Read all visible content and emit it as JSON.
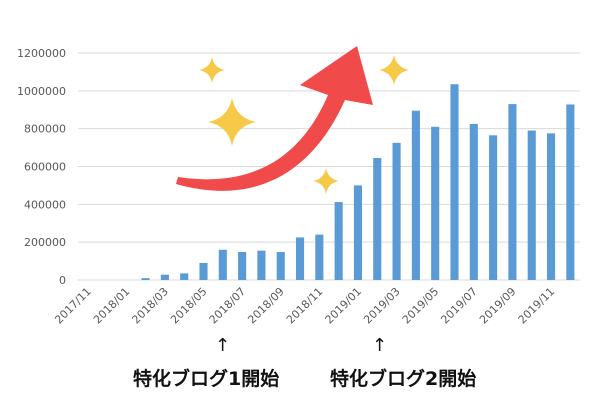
{
  "chart_data": {
    "type": "bar",
    "categories": [
      "2017/11",
      "2017/12",
      "2018/01",
      "2018/02",
      "2018/03",
      "2018/04",
      "2018/05",
      "2018/06",
      "2018/07",
      "2018/08",
      "2018/09",
      "2018/10",
      "2018/11",
      "2018/12",
      "2019/01",
      "2019/02",
      "2019/03",
      "2019/04",
      "2019/05",
      "2019/06",
      "2019/07",
      "2019/08",
      "2019/09",
      "2019/10",
      "2019/11",
      "2019/12"
    ],
    "values": [
      0,
      0,
      0,
      10000,
      28000,
      35000,
      90000,
      160000,
      148000,
      155000,
      148000,
      225000,
      240000,
      412000,
      500000,
      645000,
      725000,
      895000,
      810000,
      1035000,
      825000,
      765000,
      930000,
      790000,
      775000,
      928000
    ],
    "x_tick_labels": [
      "2017/11",
      "2018/01",
      "2018/03",
      "2018/05",
      "2018/07",
      "2018/09",
      "2018/11",
      "2019/01",
      "2019/03",
      "2019/05",
      "2019/07",
      "2019/09",
      "2019/11"
    ],
    "y_ticks": [
      0,
      200000,
      400000,
      600000,
      800000,
      1000000,
      1200000
    ],
    "ylim": [
      0,
      1200000
    ],
    "grid": true,
    "bar_color": "#5b9bd5"
  },
  "annotations": [
    {
      "text": "特化ブログ1開始",
      "marker": "↑"
    },
    {
      "text": "特化ブログ2開始",
      "marker": "↑"
    }
  ],
  "decor_colors": {
    "arrow": "#f04a4a",
    "sparkle": "#f7c948"
  }
}
